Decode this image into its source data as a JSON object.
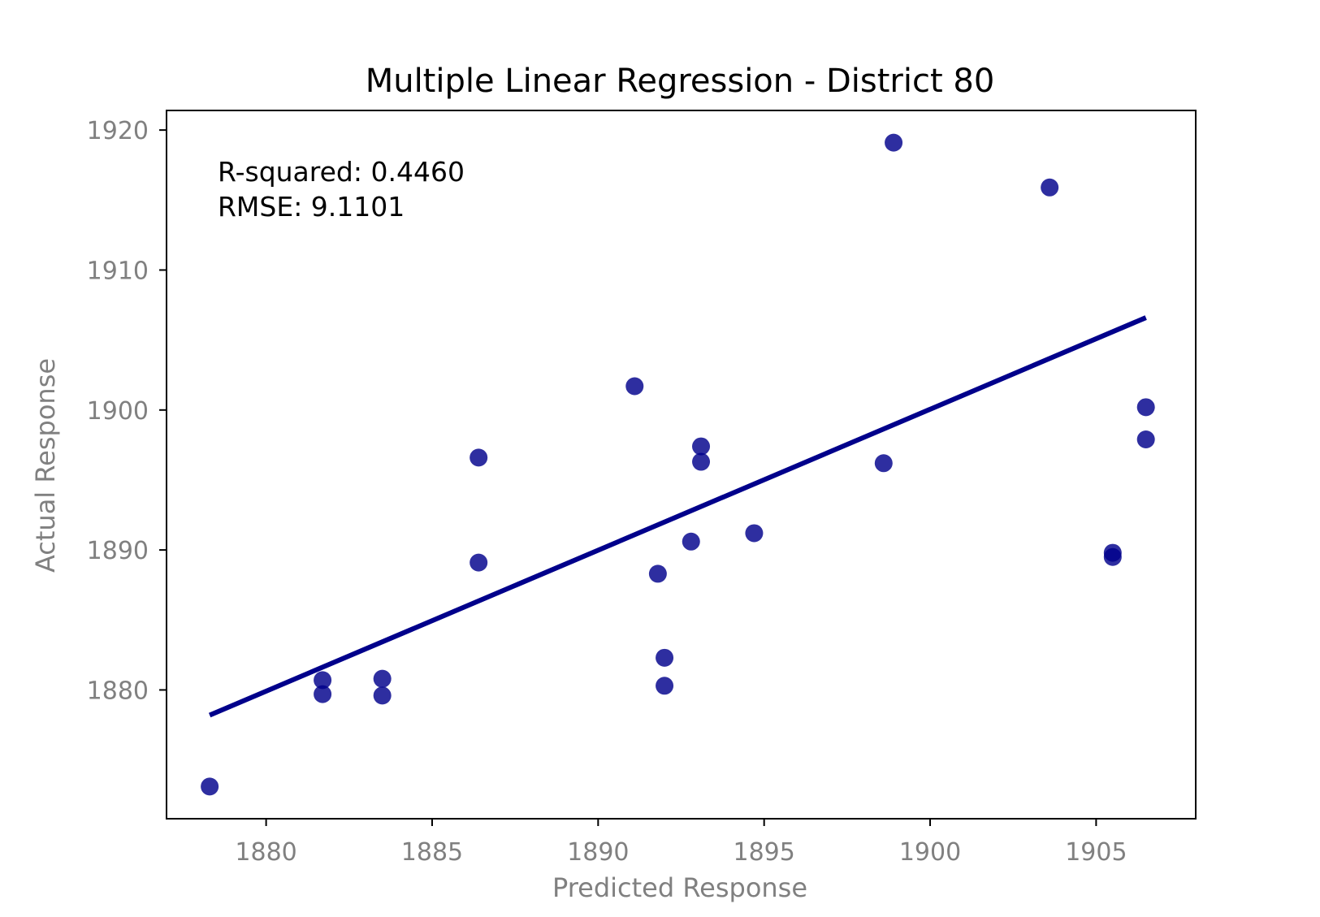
{
  "colors": {
    "points": "#00008b",
    "line": "#00008b",
    "axis": "#000000",
    "tick_label": "#808080",
    "background": "#ffffff"
  },
  "chart_data": {
    "type": "scatter",
    "title": "Multiple Linear Regression - District 80",
    "xlabel": "Predicted Response",
    "ylabel": "Actual Response",
    "xlim": [
      1877,
      1908
    ],
    "ylim": [
      1870.8,
      1921.4
    ],
    "xticks": [
      1880,
      1885,
      1890,
      1895,
      1900,
      1905
    ],
    "yticks": [
      1880,
      1890,
      1900,
      1910,
      1920
    ],
    "xtick_labels": [
      "1880",
      "1885",
      "1890",
      "1895",
      "1900",
      "1905"
    ],
    "ytick_labels": [
      "1880",
      "1890",
      "1900",
      "1910",
      "1920"
    ],
    "grid": false,
    "legend": "none",
    "annotations": [
      "R-squared: 0.4460",
      "RMSE: 9.1101"
    ],
    "series": [
      {
        "type": "scatter",
        "x": [
          1878.3,
          1881.7,
          1881.7,
          1883.5,
          1883.5,
          1886.4,
          1886.4,
          1891.1,
          1891.8,
          1892.0,
          1892.0,
          1892.8,
          1893.1,
          1893.1,
          1894.7,
          1898.6,
          1898.9,
          1903.6,
          1905.5,
          1905.5,
          1906.5,
          1906.5
        ],
        "y": [
          1873.1,
          1880.7,
          1879.7,
          1880.8,
          1879.6,
          1896.6,
          1889.1,
          1901.7,
          1888.3,
          1882.3,
          1880.3,
          1890.6,
          1897.4,
          1896.3,
          1891.2,
          1896.2,
          1919.1,
          1915.9,
          1889.8,
          1889.5,
          1900.2,
          1897.9
        ]
      },
      {
        "type": "line",
        "x": [
          1878.3,
          1906.5
        ],
        "y": [
          1878.2,
          1906.6
        ]
      }
    ]
  }
}
